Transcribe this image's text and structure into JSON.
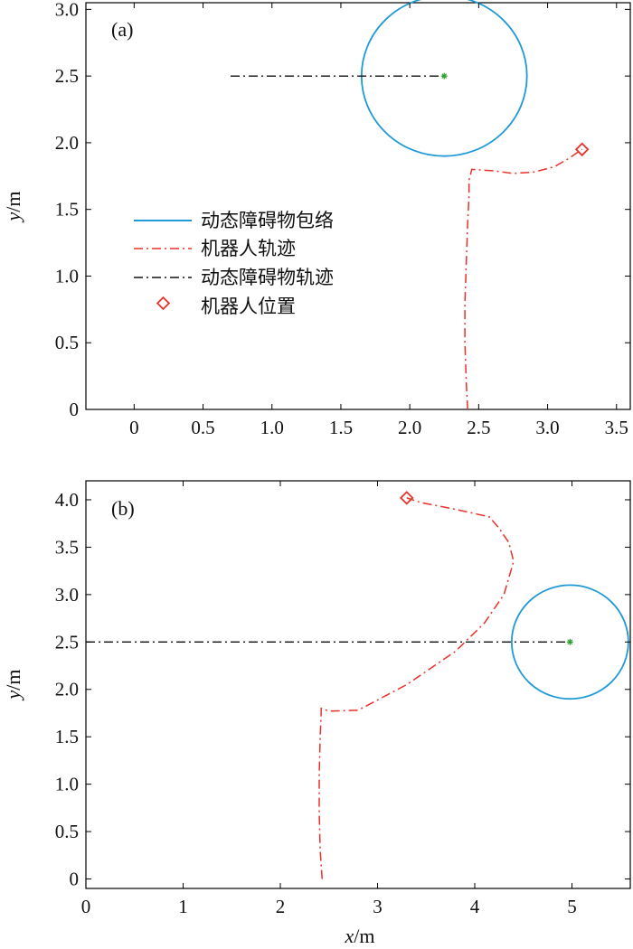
{
  "colors": {
    "envelope": "#1f9ad6",
    "robot": "#e8312a",
    "obstacle_path": "#111111",
    "obstacle_center": "#2ca02c",
    "axes": "#000000"
  },
  "chart_data": [
    {
      "type": "line",
      "panel_label": "(a)",
      "xlim": [
        -0.35,
        3.6
      ],
      "ylim": [
        0,
        3.05
      ],
      "xticks": [
        "0",
        "0.5",
        "1.0",
        "1.5",
        "2.0",
        "2.5",
        "3.0",
        "3.5"
      ],
      "xtick_values": [
        0,
        0.5,
        1.0,
        1.5,
        2.0,
        2.5,
        3.0,
        3.5
      ],
      "yticks": [
        "0",
        "0.5",
        "1.0",
        "1.5",
        "2.0",
        "2.5",
        "3.0"
      ],
      "ytick_values": [
        0,
        0.5,
        1.0,
        1.5,
        2.0,
        2.5,
        3.0
      ],
      "xlabel": "",
      "ylabel": "y/m",
      "legend_position": "left-middle",
      "legend": [
        {
          "key": "envelope",
          "label": "动态障碍物包络"
        },
        {
          "key": "robot_path",
          "label": "机器人轨迹"
        },
        {
          "key": "obstacle_path",
          "label": "动态障碍物轨迹"
        },
        {
          "key": "robot_position",
          "label": "机器人位置"
        }
      ],
      "envelope": {
        "cx": 2.25,
        "cy": 2.5,
        "rx": 0.6,
        "ry": 0.6
      },
      "obstacle_center": {
        "x": 2.25,
        "y": 2.5
      },
      "obstacle_path": {
        "x": [
          0.7,
          2.25
        ],
        "y": [
          2.5,
          2.5
        ]
      },
      "robot_path": {
        "x": [
          2.42,
          2.41,
          2.4,
          2.4,
          2.41,
          2.42,
          2.43,
          2.43,
          2.45,
          2.6,
          2.75,
          2.9,
          3.05,
          3.15,
          3.25
        ],
        "y": [
          0.0,
          0.2,
          0.5,
          0.8,
          1.1,
          1.4,
          1.6,
          1.72,
          1.8,
          1.79,
          1.77,
          1.78,
          1.82,
          1.88,
          1.95
        ]
      },
      "robot_position": {
        "x": 3.25,
        "y": 1.95
      }
    },
    {
      "type": "line",
      "panel_label": "(b)",
      "xlim": [
        0,
        5.6
      ],
      "ylim": [
        -0.1,
        4.2
      ],
      "xticks": [
        "0",
        "1",
        "2",
        "3",
        "4",
        "5"
      ],
      "xtick_values": [
        0,
        1,
        2,
        3,
        4,
        5
      ],
      "yticks": [
        "0",
        "0.5",
        "1.0",
        "1.5",
        "2.0",
        "2.5",
        "3.0",
        "3.5",
        "4.0"
      ],
      "ytick_values": [
        0,
        0.5,
        1.0,
        1.5,
        2.0,
        2.5,
        3.0,
        3.5,
        4.0
      ],
      "xlabel": "x/m",
      "ylabel": "y/m",
      "envelope": {
        "cx": 4.98,
        "cy": 2.5,
        "rx": 0.6,
        "ry": 0.6
      },
      "obstacle_center": {
        "x": 4.98,
        "y": 2.5
      },
      "obstacle_path": {
        "x": [
          0.0,
          4.98
        ],
        "y": [
          2.5,
          2.5
        ]
      },
      "robot_path": {
        "x": [
          2.43,
          2.41,
          2.4,
          2.4,
          2.41,
          2.42,
          2.42,
          2.5,
          2.8,
          3.3,
          3.8,
          4.1,
          4.3,
          4.4,
          4.35,
          4.25,
          4.15,
          3.8,
          3.45,
          3.3
        ],
        "y": [
          0.0,
          0.3,
          0.7,
          1.1,
          1.5,
          1.75,
          1.8,
          1.77,
          1.78,
          2.05,
          2.4,
          2.7,
          3.0,
          3.35,
          3.55,
          3.7,
          3.82,
          3.9,
          3.97,
          4.02
        ]
      },
      "robot_position": {
        "x": 3.3,
        "y": 4.02
      }
    }
  ]
}
